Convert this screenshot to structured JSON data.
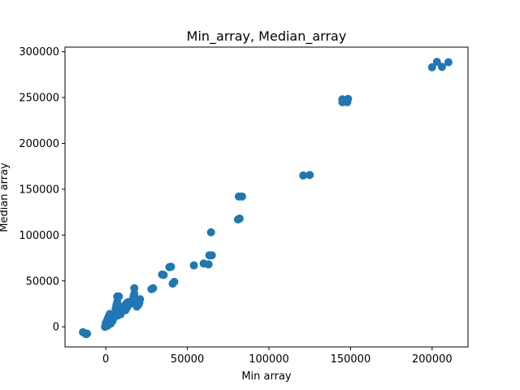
{
  "chart_data": {
    "type": "scatter",
    "title": "Min_array, Median_array",
    "xlabel": "Min array",
    "ylabel": "Median array",
    "xlim": [
      -25000,
      222000
    ],
    "ylim": [
      -22000,
      305000
    ],
    "x_ticks": [
      0,
      50000,
      100000,
      150000,
      200000
    ],
    "y_ticks": [
      0,
      50000,
      100000,
      150000,
      200000,
      250000,
      300000
    ],
    "x_tick_labels": [
      "0",
      "50000",
      "100000",
      "150000",
      "200000"
    ],
    "y_tick_labels": [
      "0",
      "50000",
      "100000",
      "150000",
      "200000",
      "250000",
      "300000"
    ],
    "grid": false,
    "marker_color": "#1f77b4",
    "points": [
      {
        "x": -14000,
        "y": -6000
      },
      {
        "x": -13000,
        "y": -7000
      },
      {
        "x": -12000,
        "y": -8000
      },
      {
        "x": -11500,
        "y": -7500
      },
      {
        "x": -500,
        "y": 0
      },
      {
        "x": 0,
        "y": 500
      },
      {
        "x": 300,
        "y": 1500
      },
      {
        "x": 800,
        "y": 2500
      },
      {
        "x": 0,
        "y": 4000
      },
      {
        "x": 500,
        "y": 5000
      },
      {
        "x": 1000,
        "y": 1000
      },
      {
        "x": 1500,
        "y": 3000
      },
      {
        "x": 2000,
        "y": 4500
      },
      {
        "x": 2500,
        "y": 6000
      },
      {
        "x": 3000,
        "y": 7000
      },
      {
        "x": 1000,
        "y": 8000
      },
      {
        "x": 1500,
        "y": 10000
      },
      {
        "x": 2000,
        "y": 12000
      },
      {
        "x": 2500,
        "y": 14000
      },
      {
        "x": 3500,
        "y": 9000
      },
      {
        "x": 4000,
        "y": 11000
      },
      {
        "x": 4500,
        "y": 8500
      },
      {
        "x": 5000,
        "y": 10500
      },
      {
        "x": 5500,
        "y": 13000
      },
      {
        "x": 6000,
        "y": 15000
      },
      {
        "x": 6500,
        "y": 17000
      },
      {
        "x": 7000,
        "y": 12000
      },
      {
        "x": 7500,
        "y": 14500
      },
      {
        "x": 8000,
        "y": 16500
      },
      {
        "x": 8500,
        "y": 19000
      },
      {
        "x": 9000,
        "y": 13500
      },
      {
        "x": 9500,
        "y": 18000
      },
      {
        "x": 10000,
        "y": 20000
      },
      {
        "x": 11000,
        "y": 22000
      },
      {
        "x": 12000,
        "y": 24000
      },
      {
        "x": 13000,
        "y": 26000
      },
      {
        "x": 14000,
        "y": 27000
      },
      {
        "x": 15000,
        "y": 25000
      },
      {
        "x": 16000,
        "y": 28000
      },
      {
        "x": 6000,
        "y": 20000
      },
      {
        "x": 6500,
        "y": 24000
      },
      {
        "x": 7000,
        "y": 27000
      },
      {
        "x": 7000,
        "y": 33000
      },
      {
        "x": 8000,
        "y": 33000
      },
      {
        "x": 17000,
        "y": 33000
      },
      {
        "x": 17500,
        "y": 36000
      },
      {
        "x": 17500,
        "y": 42000
      },
      {
        "x": 18000,
        "y": 30000
      },
      {
        "x": 19000,
        "y": 22000
      },
      {
        "x": 20000,
        "y": 24000
      },
      {
        "x": 21000,
        "y": 30000
      },
      {
        "x": 20500,
        "y": 26000
      },
      {
        "x": 12000,
        "y": 18000
      },
      {
        "x": 13000,
        "y": 21000
      },
      {
        "x": 4000,
        "y": 6000
      },
      {
        "x": 3000,
        "y": 3500
      },
      {
        "x": 28000,
        "y": 41000
      },
      {
        "x": 29000,
        "y": 42000
      },
      {
        "x": 34500,
        "y": 57000
      },
      {
        "x": 35500,
        "y": 56500
      },
      {
        "x": 39000,
        "y": 65000
      },
      {
        "x": 40000,
        "y": 65500
      },
      {
        "x": 41000,
        "y": 47000
      },
      {
        "x": 42000,
        "y": 49000
      },
      {
        "x": 54000,
        "y": 67000
      },
      {
        "x": 60000,
        "y": 69000
      },
      {
        "x": 63000,
        "y": 68000
      },
      {
        "x": 63500,
        "y": 78000
      },
      {
        "x": 65000,
        "y": 78000
      },
      {
        "x": 64500,
        "y": 103000
      },
      {
        "x": 81000,
        "y": 117000
      },
      {
        "x": 82000,
        "y": 118000
      },
      {
        "x": 81500,
        "y": 142000
      },
      {
        "x": 83500,
        "y": 142000
      },
      {
        "x": 121000,
        "y": 165000
      },
      {
        "x": 125000,
        "y": 165500
      },
      {
        "x": 145000,
        "y": 245000
      },
      {
        "x": 145000,
        "y": 248000
      },
      {
        "x": 148000,
        "y": 245000
      },
      {
        "x": 148500,
        "y": 248500
      },
      {
        "x": 200000,
        "y": 283000
      },
      {
        "x": 203000,
        "y": 289000
      },
      {
        "x": 206000,
        "y": 283500
      },
      {
        "x": 210000,
        "y": 288500
      }
    ]
  }
}
